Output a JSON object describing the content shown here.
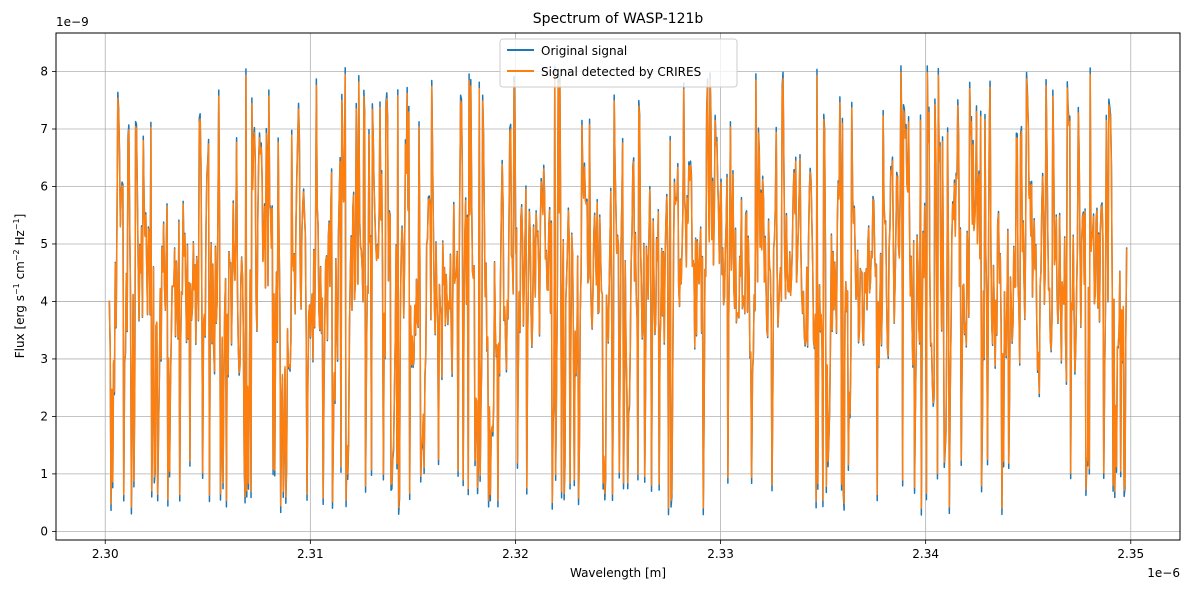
{
  "chart_data": {
    "type": "line",
    "title": "Spectrum of WASP-121b",
    "xlabel": "Wavelength [m]",
    "ylabel_parts": [
      "Flux [erg s",
      "−1",
      " cm",
      "−2",
      " Hz",
      "−1",
      "]"
    ],
    "x_offset_label": "1e−6",
    "y_offset_label": "1e−9",
    "xlim": [
      2.2976,
      2.3524
    ],
    "ylim": [
      -0.15,
      8.67
    ],
    "xticks": [
      2.3,
      2.31,
      2.32,
      2.33,
      2.34,
      2.35
    ],
    "xtick_labels": [
      "2.30",
      "2.31",
      "2.32",
      "2.33",
      "2.34",
      "2.35"
    ],
    "yticks": [
      0,
      1,
      2,
      3,
      4,
      5,
      6,
      7,
      8
    ],
    "ytick_labels": [
      "0",
      "1",
      "2",
      "3",
      "4",
      "5",
      "6",
      "7",
      "8"
    ],
    "grid": true,
    "legend_position": "top-center",
    "x_range": [
      2.3002,
      2.3498
    ],
    "n_points": 1200,
    "seed": 121,
    "series": [
      {
        "name": "Original signal",
        "color": "#1f77b4",
        "scale": 1.0
      },
      {
        "name": "Signal detected by CRIRES",
        "color": "#ff7f0e",
        "scale": 0.97
      }
    ]
  }
}
